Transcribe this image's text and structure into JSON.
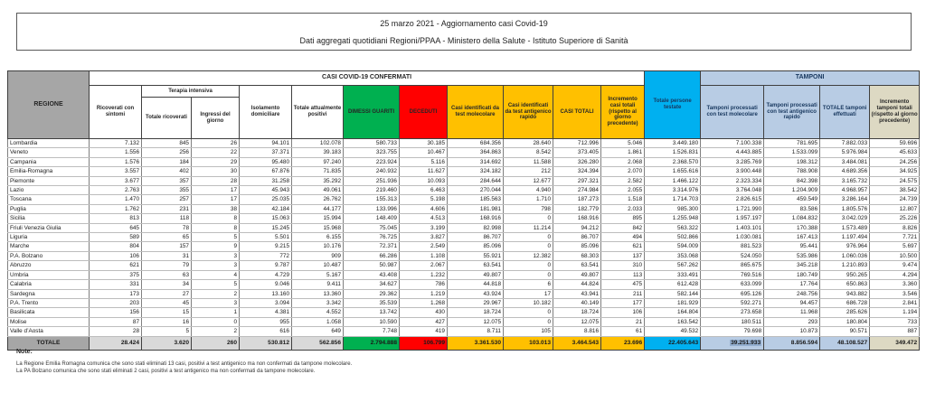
{
  "title": {
    "line1": "25 marzo 2021 - Aggiornamento casi Covid-19",
    "line2": "Dati aggregati quotidiani Regioni/PPAA - Ministero della Salute - Istituto Superiore di Sanità"
  },
  "table": {
    "region_header": "REGIONE",
    "casi_band": "CASI COVID-19 CONFERMATI",
    "tamponi_band": "TAMPONI",
    "terapia_band": "Terapia intensiva",
    "columns": [
      "Ricoverati con sintomi",
      "Totale ricoverati",
      "Ingressi del giorno",
      "Isolamento domiciliare",
      "Totale attualmente positivi",
      "DIMESSI GUARITI",
      "DECEDUTI",
      "Casi identificati da test molecolare",
      "Casi identificati da test antigenico rapido",
      "CASI TOTALI",
      "Incremento casi totali (rispetto al giorno precedente)",
      "Totale persone testate",
      "Tamponi processati con test molecolare",
      "Tamponi processati con test antigenico rapido",
      "TOTALE tamponi effettuati",
      "Incremento tamponi totali (rispetto al giorno precedente)"
    ],
    "rows": [
      {
        "region": "Lombardia",
        "values": [
          "7.132",
          "845",
          "26",
          "94.101",
          "102.078",
          "580.733",
          "30.185",
          "684.356",
          "28.640",
          "712.996",
          "5.046",
          "3.449.180",
          "7.100.338",
          "781.695",
          "7.882.033",
          "59.696"
        ]
      },
      {
        "region": "Veneto",
        "values": [
          "1.556",
          "256",
          "22",
          "37.371",
          "39.183",
          "323.755",
          "10.467",
          "364.863",
          "8.542",
          "373.405",
          "1.861",
          "1.526.831",
          "4.443.885",
          "1.533.099",
          "5.976.984",
          "45.633"
        ]
      },
      {
        "region": "Campania",
        "values": [
          "1.576",
          "184",
          "29",
          "95.480",
          "97.240",
          "223.924",
          "5.116",
          "314.692",
          "11.588",
          "326.280",
          "2.068",
          "2.368.570",
          "3.285.769",
          "198.312",
          "3.484.081",
          "24.256"
        ]
      },
      {
        "region": "Emilia-Romagna",
        "values": [
          "3.557",
          "402",
          "30",
          "67.876",
          "71.835",
          "240.932",
          "11.627",
          "324.182",
          "212",
          "324.394",
          "2.070",
          "1.655.616",
          "3.900.448",
          "788.908",
          "4.689.356",
          "34.925"
        ]
      },
      {
        "region": "Piemonte",
        "values": [
          "3.677",
          "357",
          "28",
          "31.258",
          "35.292",
          "251.936",
          "10.093",
          "284.644",
          "12.677",
          "297.321",
          "2.582",
          "1.466.122",
          "2.323.334",
          "842.398",
          "3.165.732",
          "24.575"
        ]
      },
      {
        "region": "Lazio",
        "values": [
          "2.763",
          "355",
          "17",
          "45.943",
          "49.061",
          "219.460",
          "6.463",
          "270.044",
          "4.940",
          "274.984",
          "2.055",
          "3.314.976",
          "3.764.048",
          "1.204.909",
          "4.968.957",
          "38.542"
        ]
      },
      {
        "region": "Toscana",
        "values": [
          "1.470",
          "257",
          "17",
          "25.035",
          "26.762",
          "155.313",
          "5.198",
          "185.563",
          "1.710",
          "187.273",
          "1.518",
          "1.714.703",
          "2.826.615",
          "459.549",
          "3.286.164",
          "24.739"
        ]
      },
      {
        "region": "Puglia",
        "values": [
          "1.762",
          "231",
          "38",
          "42.184",
          "44.177",
          "133.996",
          "4.606",
          "181.981",
          "798",
          "182.779",
          "2.033",
          "985.300",
          "1.721.990",
          "83.586",
          "1.805.576",
          "12.807"
        ]
      },
      {
        "region": "Sicilia",
        "values": [
          "813",
          "118",
          "8",
          "15.063",
          "15.994",
          "148.409",
          "4.513",
          "168.916",
          "0",
          "168.916",
          "895",
          "1.255.948",
          "1.957.197",
          "1.084.832",
          "3.042.029",
          "25.226"
        ]
      },
      {
        "region": "Friuli Venezia Giulia",
        "values": [
          "645",
          "78",
          "8",
          "15.245",
          "15.968",
          "75.045",
          "3.199",
          "82.998",
          "11.214",
          "94.212",
          "842",
          "563.322",
          "1.403.101",
          "170.388",
          "1.573.489",
          "8.826"
        ]
      },
      {
        "region": "Liguria",
        "values": [
          "589",
          "65",
          "5",
          "5.501",
          "6.155",
          "76.725",
          "3.827",
          "86.707",
          "0",
          "86.707",
          "494",
          "502.866",
          "1.030.081",
          "167.413",
          "1.197.494",
          "7.721"
        ]
      },
      {
        "region": "Marche",
        "values": [
          "804",
          "157",
          "9",
          "9.215",
          "10.176",
          "72.371",
          "2.549",
          "85.096",
          "0",
          "85.096",
          "621",
          "594.009",
          "881.523",
          "95.441",
          "976.964",
          "5.697"
        ]
      },
      {
        "region": "P.A. Bolzano",
        "values": [
          "106",
          "31",
          "3",
          "772",
          "909",
          "66.286",
          "1.108",
          "55.921",
          "12.382",
          "68.303",
          "137",
          "353.068",
          "524.050",
          "535.986",
          "1.060.036",
          "10.500"
        ]
      },
      {
        "region": "Abruzzo",
        "values": [
          "621",
          "79",
          "3",
          "9.787",
          "10.487",
          "50.987",
          "2.067",
          "63.541",
          "0",
          "63.541",
          "310",
          "567.262",
          "865.675",
          "345.218",
          "1.210.893",
          "9.474"
        ]
      },
      {
        "region": "Umbria",
        "values": [
          "375",
          "63",
          "4",
          "4.729",
          "5.167",
          "43.408",
          "1.232",
          "49.807",
          "0",
          "49.807",
          "113",
          "333.491",
          "769.516",
          "180.749",
          "950.265",
          "4.294"
        ]
      },
      {
        "region": "Calabria",
        "values": [
          "331",
          "34",
          "5",
          "9.046",
          "9.411",
          "34.627",
          "786",
          "44.818",
          "6",
          "44.824",
          "475",
          "612.428",
          "633.099",
          "17.764",
          "650.863",
          "3.360"
        ]
      },
      {
        "region": "Sardegna",
        "values": [
          "173",
          "27",
          "2",
          "13.160",
          "13.360",
          "29.362",
          "1.219",
          "43.924",
          "17",
          "43.941",
          "211",
          "582.144",
          "695.126",
          "248.756",
          "943.882",
          "3.546"
        ]
      },
      {
        "region": "P.A. Trento",
        "values": [
          "203",
          "45",
          "3",
          "3.094",
          "3.342",
          "35.539",
          "1.268",
          "29.967",
          "10.182",
          "40.149",
          "177",
          "181.929",
          "592.271",
          "94.457",
          "686.728",
          "2.841"
        ]
      },
      {
        "region": "Basilicata",
        "values": [
          "156",
          "15",
          "1",
          "4.381",
          "4.552",
          "13.742",
          "430",
          "18.724",
          "0",
          "18.724",
          "106",
          "164.804",
          "273.658",
          "11.968",
          "285.626",
          "1.194"
        ]
      },
      {
        "region": "Molise",
        "values": [
          "87",
          "16",
          "0",
          "955",
          "1.058",
          "10.590",
          "427",
          "12.075",
          "0",
          "12.075",
          "21",
          "163.542",
          "180.511",
          "293",
          "180.804",
          "733"
        ]
      },
      {
        "region": "Valle d’Aosta",
        "values": [
          "28",
          "5",
          "2",
          "616",
          "649",
          "7.748",
          "419",
          "8.711",
          "105",
          "8.816",
          "61",
          "49.532",
          "79.698",
          "10.873",
          "90.571",
          "887"
        ]
      }
    ],
    "total": {
      "label": "TOTALE",
      "values": [
        "28.424",
        "3.620",
        "260",
        "530.812",
        "562.856",
        "2.794.888",
        "106.799",
        "3.361.530",
        "103.013",
        "3.464.543",
        "23.696",
        "22.405.643",
        "39.251.933",
        "8.856.594",
        "48.108.527",
        "349.472"
      ],
      "highlighted_value_index": 12
    }
  },
  "notes": {
    "title": "Note:",
    "lines": [
      "La Regione Emilia Romagna comunica che sono stati eliminati 13 casi, positivi a test antigenico ma non confermati da tampone molecolare.",
      "La PA Bolzano comunica che sono stati eliminati 2 casi, positivi a test antigenico ma non confermati da tampone molecolare."
    ]
  },
  "colors": {
    "recovered_green": "#00b050",
    "deceased_red": "#ff0000",
    "cases_yellow": "#ffc000",
    "tested_cyan": "#00b0f0",
    "tamponi_blue": "#b8cce4",
    "increment_beige": "#ddd9c3",
    "header_gray": "#a6a6a6",
    "highlight_blue": "#93aecf"
  }
}
